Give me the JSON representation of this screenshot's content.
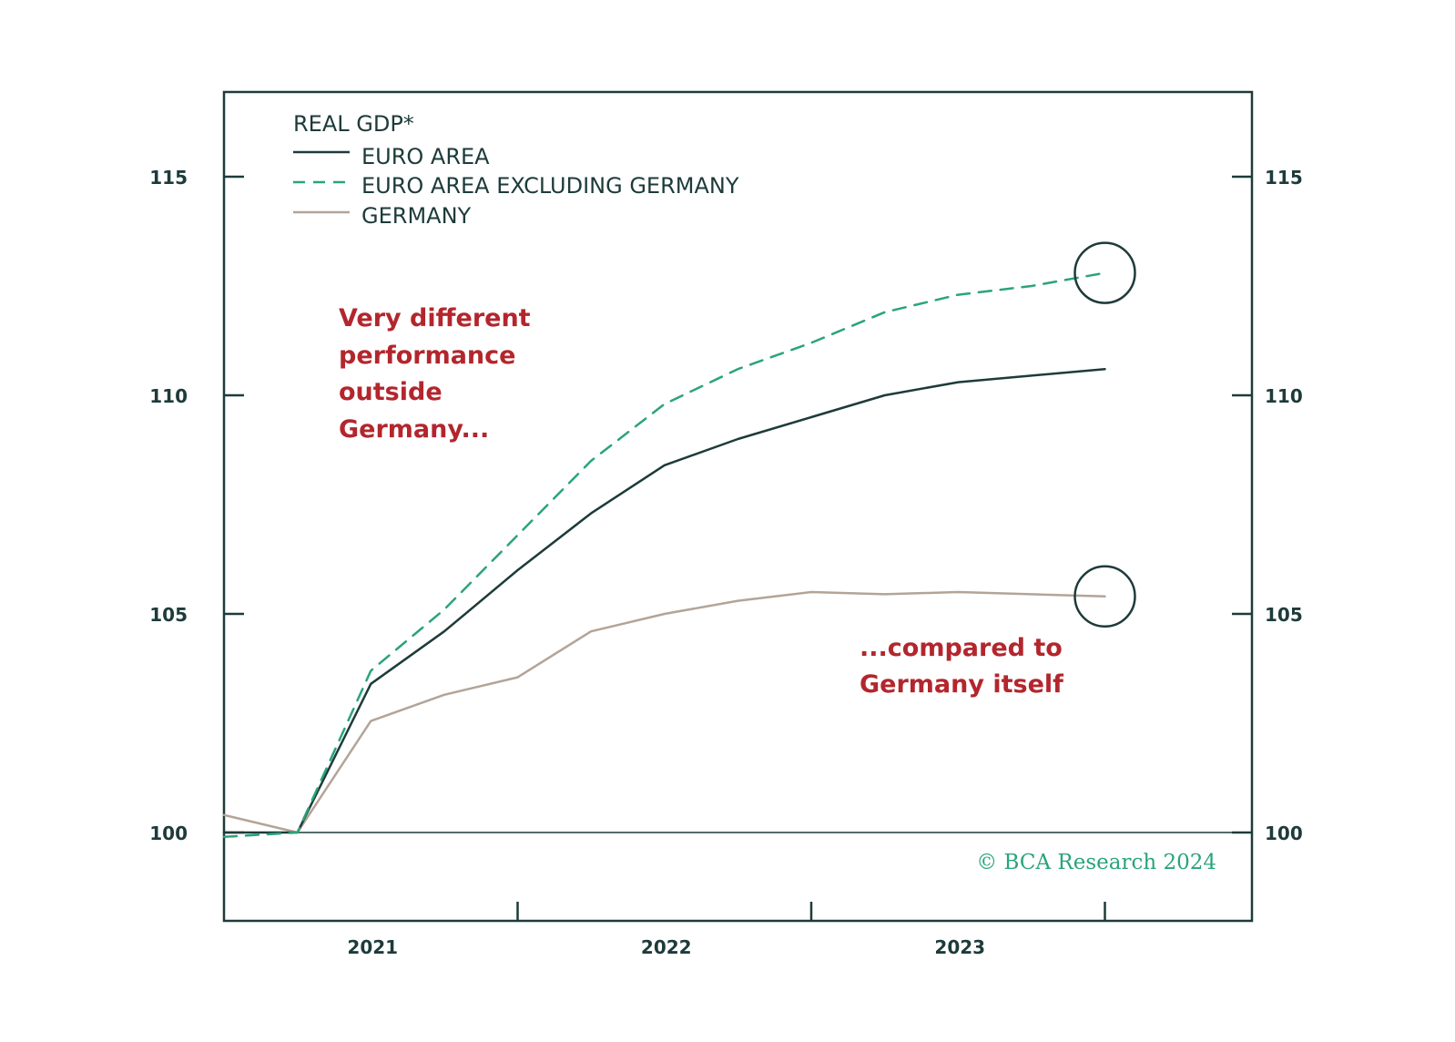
{
  "chart_data": {
    "type": "line",
    "title": "REAL GDP*",
    "x_ticks": [
      "2021",
      "2022",
      "2023"
    ],
    "y_ticks": [
      100,
      105,
      110,
      115
    ],
    "ylim": [
      98,
      117
    ],
    "xlim": [
      2020.5,
      2024.0
    ],
    "grid": false,
    "baseline": 100,
    "legend_position": "top-left",
    "x": [
      2020.5,
      2020.75,
      2021.0,
      2021.25,
      2021.5,
      2021.75,
      2022.0,
      2022.25,
      2022.5,
      2022.75,
      2023.0,
      2023.25,
      2023.5
    ],
    "series": [
      {
        "name": "EURO AREA",
        "color": "#1d3b3a",
        "style": "solid",
        "values": [
          100.0,
          100.0,
          103.4,
          104.6,
          106.0,
          107.3,
          108.4,
          109.0,
          109.5,
          110.0,
          110.3,
          110.45,
          110.6
        ]
      },
      {
        "name": "EURO AREA EXCLUDING GERMANY",
        "color": "#2aa47a",
        "style": "dashed",
        "values": [
          99.9,
          100.0,
          103.7,
          105.1,
          106.8,
          108.5,
          109.8,
          110.6,
          111.2,
          111.9,
          112.3,
          112.5,
          112.8
        ]
      },
      {
        "name": "GERMANY",
        "color": "#b3a498",
        "style": "solid",
        "values": [
          100.4,
          100.0,
          102.55,
          103.15,
          103.55,
          104.6,
          105.0,
          105.3,
          105.5,
          105.45,
          105.5,
          105.45,
          105.4
        ]
      }
    ],
    "highlight_circles": [
      {
        "x": 2023.5,
        "y": 112.8
      },
      {
        "x": 2023.5,
        "y": 105.4
      }
    ],
    "annotations": [
      {
        "lines": [
          "Very different",
          "performance",
          "outside",
          "Germany..."
        ]
      },
      {
        "lines": [
          "...compared to",
          "Germany itself"
        ]
      }
    ],
    "credit": "© BCA Research 2024"
  }
}
